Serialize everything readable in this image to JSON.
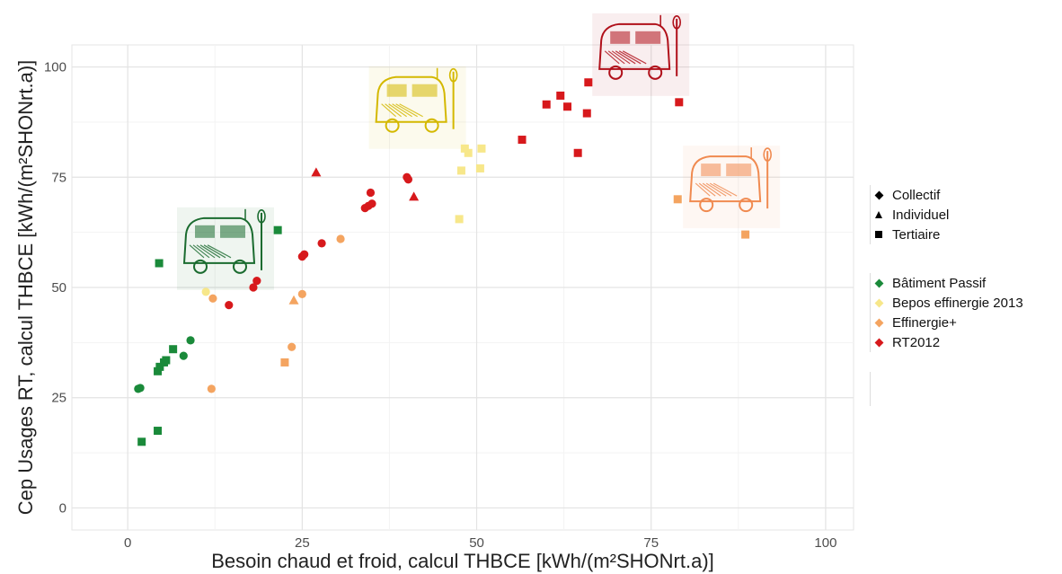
{
  "chart_data": {
    "type": "scatter",
    "xlabel": "Besoin chaud et froid, calcul THBCE [kWh/(m²SHONrt.a)]",
    "ylabel": "Cep Usages RT, calcul THBCE [kWh/(m²SHONrt.a)]",
    "xlim": [
      -8,
      104
    ],
    "ylim": [
      -5,
      105
    ],
    "x_ticks": [
      0,
      25,
      50,
      75,
      100
    ],
    "y_ticks": [
      0,
      25,
      50,
      75,
      100
    ],
    "grid": true,
    "legend_shape": {
      "position": "right",
      "entries": [
        {
          "label": "Collectif",
          "shape": "diamond"
        },
        {
          "label": "Individuel",
          "shape": "triangle"
        },
        {
          "label": "Tertiaire",
          "shape": "square"
        }
      ]
    },
    "legend_color": {
      "position": "right",
      "entries": [
        {
          "label": "Bâtiment Passif",
          "color": "#1a8a3a"
        },
        {
          "label": "Bepos effinergie 2013",
          "color": "#f7e78a"
        },
        {
          "label": "Effinergie+",
          "color": "#f4a460"
        },
        {
          "label": "RT2012",
          "color": "#d7191c"
        }
      ]
    },
    "series": [
      {
        "name": "Bâtiment Passif",
        "color": "#1a8a3a",
        "points": [
          {
            "x": 1.5,
            "y": 27,
            "shape": "diamond"
          },
          {
            "x": 1.8,
            "y": 27.2,
            "shape": "diamond"
          },
          {
            "x": 2,
            "y": 15,
            "shape": "square"
          },
          {
            "x": 4.3,
            "y": 17.5,
            "shape": "square"
          },
          {
            "x": 4.3,
            "y": 31,
            "shape": "square"
          },
          {
            "x": 4.6,
            "y": 32,
            "shape": "square"
          },
          {
            "x": 5.2,
            "y": 33,
            "shape": "square"
          },
          {
            "x": 5.5,
            "y": 33.5,
            "shape": "square"
          },
          {
            "x": 6.5,
            "y": 36,
            "shape": "square"
          },
          {
            "x": 8,
            "y": 34.5,
            "shape": "diamond"
          },
          {
            "x": 9,
            "y": 38,
            "shape": "diamond"
          },
          {
            "x": 4.5,
            "y": 55.5,
            "shape": "square"
          },
          {
            "x": 21.5,
            "y": 63,
            "shape": "square"
          }
        ]
      },
      {
        "name": "Bepos effinergie 2013",
        "color": "#f7e78a",
        "points": [
          {
            "x": 11.2,
            "y": 49,
            "shape": "diamond"
          },
          {
            "x": 47.5,
            "y": 65.5,
            "shape": "square"
          },
          {
            "x": 47.8,
            "y": 76.5,
            "shape": "square"
          },
          {
            "x": 48.3,
            "y": 81.5,
            "shape": "square"
          },
          {
            "x": 48.8,
            "y": 80.5,
            "shape": "square"
          },
          {
            "x": 50.5,
            "y": 77,
            "shape": "square"
          },
          {
            "x": 50.7,
            "y": 81.5,
            "shape": "square"
          }
        ]
      },
      {
        "name": "Effinergie+",
        "color": "#f4a460",
        "points": [
          {
            "x": 12,
            "y": 27,
            "shape": "diamond"
          },
          {
            "x": 12.2,
            "y": 47.5,
            "shape": "diamond"
          },
          {
            "x": 22.5,
            "y": 33,
            "shape": "square"
          },
          {
            "x": 23.5,
            "y": 36.5,
            "shape": "diamond"
          },
          {
            "x": 23.8,
            "y": 47,
            "shape": "triangle"
          },
          {
            "x": 25,
            "y": 48.5,
            "shape": "diamond"
          },
          {
            "x": 30.5,
            "y": 61,
            "shape": "diamond"
          },
          {
            "x": 78.8,
            "y": 70,
            "shape": "square"
          },
          {
            "x": 88.5,
            "y": 62,
            "shape": "square"
          }
        ]
      },
      {
        "name": "RT2012",
        "color": "#d7191c",
        "points": [
          {
            "x": 14.5,
            "y": 46,
            "shape": "diamond"
          },
          {
            "x": 18,
            "y": 50,
            "shape": "diamond"
          },
          {
            "x": 18.5,
            "y": 51.5,
            "shape": "diamond"
          },
          {
            "x": 25,
            "y": 57,
            "shape": "diamond"
          },
          {
            "x": 25.3,
            "y": 57.5,
            "shape": "diamond"
          },
          {
            "x": 27.8,
            "y": 60,
            "shape": "diamond"
          },
          {
            "x": 34,
            "y": 68,
            "shape": "diamond"
          },
          {
            "x": 34.5,
            "y": 68.5,
            "shape": "diamond"
          },
          {
            "x": 35,
            "y": 69,
            "shape": "diamond"
          },
          {
            "x": 34.8,
            "y": 71.5,
            "shape": "diamond"
          },
          {
            "x": 27,
            "y": 76,
            "shape": "triangle"
          },
          {
            "x": 40,
            "y": 75,
            "shape": "diamond"
          },
          {
            "x": 40.2,
            "y": 74.5,
            "shape": "diamond"
          },
          {
            "x": 41,
            "y": 70.5,
            "shape": "triangle"
          },
          {
            "x": 56.5,
            "y": 83.5,
            "shape": "square"
          },
          {
            "x": 60,
            "y": 91.5,
            "shape": "square"
          },
          {
            "x": 62,
            "y": 93.5,
            "shape": "square"
          },
          {
            "x": 63,
            "y": 91,
            "shape": "square"
          },
          {
            "x": 64.5,
            "y": 80.5,
            "shape": "square"
          },
          {
            "x": 65.8,
            "y": 89.5,
            "shape": "square"
          },
          {
            "x": 66,
            "y": 96.5,
            "shape": "square"
          },
          {
            "x": 79,
            "y": 92,
            "shape": "square"
          }
        ]
      }
    ],
    "van_icons": [
      {
        "color": "#1a6b2f",
        "x": 13.5,
        "y": 59,
        "name": "passif-van-icon"
      },
      {
        "color": "#d4b800",
        "x": 41,
        "y": 91,
        "name": "bepos-van-icon"
      },
      {
        "color": "#f08a50",
        "x": 86,
        "y": 73,
        "name": "effinergie-van-icon"
      },
      {
        "color": "#b0101a",
        "x": 73,
        "y": 103,
        "name": "rt2012-van-icon"
      }
    ]
  }
}
